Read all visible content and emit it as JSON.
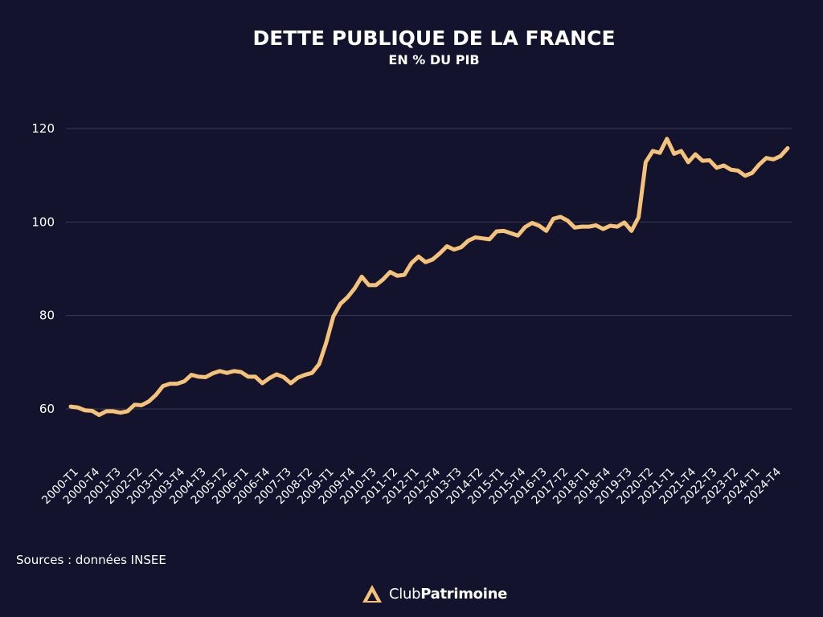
{
  "colors": {
    "background": "#14132e",
    "line": "#f5c27a",
    "grid": "#3a3950",
    "text": "#ffffff",
    "logo": "#f5c27a"
  },
  "footer": {
    "source": "Sources : données INSEE",
    "logo_light": "Club",
    "logo_bold": "Patrimoine",
    "logo_icon": "triangle-logo-icon"
  },
  "chart_data": {
    "type": "line",
    "title": "DETTE PUBLIQUE DE LA FRANCE",
    "subtitle": "EN % DU PIB",
    "xlabel": "",
    "ylabel": "",
    "ylim": [
      50,
      125
    ],
    "yticks": [
      60,
      80,
      100,
      120
    ],
    "grid": true,
    "x_tick_labels": [
      "2000-T1",
      "2000-T4",
      "2001-T3",
      "2002-T2",
      "2003-T1",
      "2003-T4",
      "2004-T3",
      "2005-T2",
      "2006-T1",
      "2006-T4",
      "2007-T3",
      "2008-T2",
      "2009-T1",
      "2009-T4",
      "2010-T3",
      "2011-T2",
      "2012-T1",
      "2012-T4",
      "2013-T3",
      "2014-T2",
      "2015-T1",
      "2015-T4",
      "2016-T3",
      "2017-T2",
      "2018-T1",
      "2018-T4",
      "2019-T3",
      "2020-T2",
      "2021-T1",
      "2021-T4",
      "2022-T3",
      "2023-T2",
      "2024-T1",
      "2024-T4"
    ],
    "series": [
      {
        "values": [
          60.5,
          60.3,
          59.7,
          59.6,
          58.7,
          59.5,
          59.5,
          59.2,
          59.5,
          60.9,
          60.8,
          61.6,
          63.0,
          64.9,
          65.4,
          65.4,
          65.9,
          67.3,
          66.9,
          66.8,
          67.6,
          68.1,
          67.7,
          68.1,
          67.9,
          66.9,
          66.9,
          65.5,
          66.6,
          67.4,
          66.8,
          65.5,
          66.7,
          67.3,
          67.7,
          69.6,
          74.2,
          79.8,
          82.5,
          83.9,
          85.8,
          88.3,
          86.5,
          86.5,
          87.7,
          89.3,
          88.5,
          88.7,
          91.2,
          92.6,
          91.4,
          92.0,
          93.3,
          94.8,
          94.1,
          94.6,
          96.0,
          96.7,
          96.5,
          96.3,
          98.0,
          98.1,
          97.6,
          97.1,
          98.9,
          99.8,
          99.2,
          98.1,
          100.7,
          101.1,
          100.3,
          98.8,
          99.0,
          99.0,
          99.3,
          98.5,
          99.2,
          99.0,
          99.9,
          98.1,
          101.0,
          112.8,
          115.2,
          114.8,
          117.8,
          114.6,
          115.2,
          112.8,
          114.5,
          113.1,
          113.2,
          111.6,
          112.1,
          111.2,
          111.0,
          109.9,
          110.5,
          112.3,
          113.7,
          113.4,
          114.1,
          115.8
        ]
      }
    ]
  }
}
